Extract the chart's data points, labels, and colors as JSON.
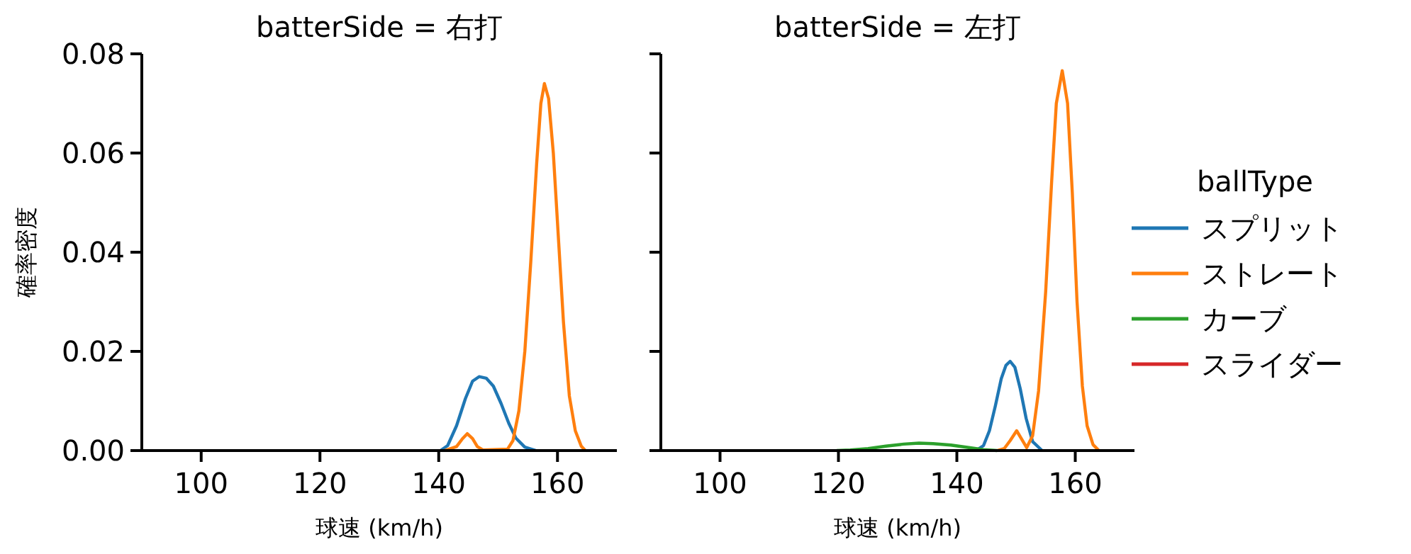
{
  "chart_data": [
    {
      "type": "line",
      "title": "batterSide = 右打",
      "xlabel": "球速 (km/h)",
      "ylabel": "確率密度",
      "xlim": [
        90,
        170
      ],
      "xticks": [
        100,
        120,
        140,
        160
      ],
      "ylim": [
        0,
        0.08
      ],
      "yticks": [
        {
          "value": 0,
          "label": "0.00"
        },
        {
          "value": 0.02,
          "label": "0.02"
        },
        {
          "value": 0.04,
          "label": "0.04"
        },
        {
          "value": 0.06,
          "label": "0.06"
        },
        {
          "value": 0.08,
          "label": "0.08"
        }
      ],
      "legend": false,
      "grid": false,
      "series": [
        {
          "color": "#1f77b4",
          "x": [
            140.3,
            141.5,
            143,
            144.5,
            145.7,
            146.8,
            148,
            149.2,
            150.5,
            151.8,
            153,
            154.5,
            156.4
          ],
          "values": [
            0,
            0.001,
            0.005,
            0.0105,
            0.014,
            0.0149,
            0.0146,
            0.013,
            0.0095,
            0.0055,
            0.0025,
            0.0007,
            0
          ]
        },
        {
          "color": "#ff7f0e",
          "x": [
            141,
            143,
            144,
            144.8,
            145.7,
            146.5,
            147.5,
            151.6,
            152.5,
            153.5,
            154.5,
            155.5,
            156.5,
            157.2,
            157.8,
            158.5,
            159.3,
            160.2,
            161,
            162,
            163,
            164,
            164.7
          ],
          "values": [
            0,
            0.0008,
            0.0024,
            0.0034,
            0.0024,
            0.0008,
            0.0001,
            0.0003,
            0.002,
            0.008,
            0.02,
            0.038,
            0.058,
            0.07,
            0.074,
            0.071,
            0.06,
            0.042,
            0.026,
            0.011,
            0.004,
            0.0009,
            0
          ]
        }
      ]
    },
    {
      "type": "line",
      "title": "batterSide = 左打",
      "xlabel": "球速 (km/h)",
      "legend_title": "ballType",
      "xlim": [
        90,
        170
      ],
      "xticks": [
        100,
        120,
        140,
        160
      ],
      "ylim": [
        0,
        0.08
      ],
      "yticks": [
        {
          "value": 0,
          "label": null
        },
        {
          "value": 0.02,
          "label": null
        },
        {
          "value": 0.04,
          "label": null
        },
        {
          "value": 0.06,
          "label": null
        },
        {
          "value": 0.08,
          "label": null
        }
      ],
      "tick_labels": "x",
      "legend": "right",
      "grid": false,
      "series": [
        {
          "name": "スプリット",
          "color": "#1f77b4",
          "x": [
            143.2,
            144.5,
            145.5,
            146.5,
            147.5,
            148.3,
            149,
            149.8,
            150.7,
            151.7,
            152.8,
            154.4
          ],
          "values": [
            0,
            0.001,
            0.004,
            0.009,
            0.0145,
            0.0172,
            0.018,
            0.0168,
            0.0125,
            0.0065,
            0.0018,
            0
          ]
        },
        {
          "name": "ストレート",
          "color": "#ff7f0e",
          "x": [
            146.8,
            148,
            149,
            150.1,
            151,
            151.8,
            152.8,
            153.8,
            155,
            156,
            156.8,
            157.8,
            158.7,
            159.5,
            160.3,
            161.2,
            162,
            163,
            164
          ],
          "values": [
            0,
            0.0004,
            0.002,
            0.004,
            0.0022,
            0.0006,
            0.003,
            0.012,
            0.032,
            0.054,
            0.07,
            0.0766,
            0.07,
            0.052,
            0.03,
            0.013,
            0.005,
            0.0012,
            0
          ]
        },
        {
          "name": "カーブ",
          "color": "#2ca02c",
          "x": [
            119.7,
            122,
            125,
            128,
            131,
            133.6,
            136,
            139,
            142,
            144.5,
            146.8
          ],
          "values": [
            0,
            0.0001,
            0.0004,
            0.0009,
            0.0013,
            0.0015,
            0.0014,
            0.0011,
            0.0006,
            0.0002,
            0
          ]
        },
        {
          "name": "スライダー",
          "color": "#d62728"
        }
      ]
    }
  ]
}
